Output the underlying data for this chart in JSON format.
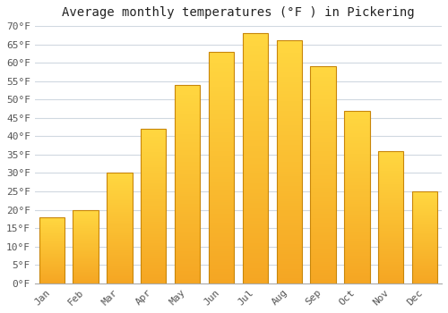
{
  "title": "Average monthly temperatures (°F ) in Pickering",
  "months": [
    "Jan",
    "Feb",
    "Mar",
    "Apr",
    "May",
    "Jun",
    "Jul",
    "Aug",
    "Sep",
    "Oct",
    "Nov",
    "Dec"
  ],
  "values": [
    18,
    20,
    30,
    42,
    54,
    63,
    68,
    66,
    59,
    47,
    36,
    25
  ],
  "bar_color_top": "#FFD740",
  "bar_color_bottom": "#F5A623",
  "bar_edge_color": "#C8860A",
  "ylim": [
    0,
    70
  ],
  "yticks": [
    0,
    5,
    10,
    15,
    20,
    25,
    30,
    35,
    40,
    45,
    50,
    55,
    60,
    65,
    70
  ],
  "ytick_labels": [
    "0°F",
    "5°F",
    "10°F",
    "15°F",
    "20°F",
    "25°F",
    "30°F",
    "35°F",
    "40°F",
    "45°F",
    "50°F",
    "55°F",
    "60°F",
    "65°F",
    "70°F"
  ],
  "background_color": "#ffffff",
  "grid_color": "#d0d8e0",
  "title_fontsize": 10,
  "tick_fontsize": 8,
  "font_family": "monospace",
  "bar_width": 0.75
}
